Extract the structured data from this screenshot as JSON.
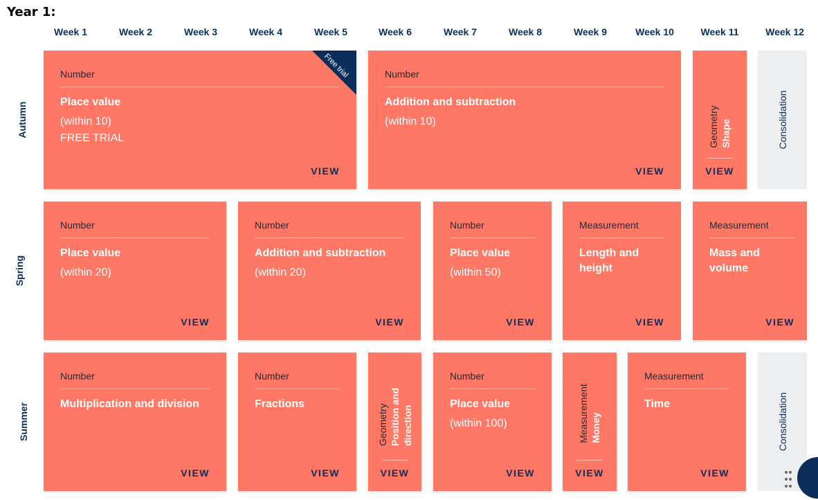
{
  "page": {
    "title": "Year 1:"
  },
  "weeks": [
    "Week 1",
    "Week 2",
    "Week 3",
    "Week 4",
    "Week 5",
    "Week 6",
    "Week 7",
    "Week 8",
    "Week 9",
    "Week 10",
    "Week 11",
    "Week 12"
  ],
  "terms": [
    "Autumn",
    "Spring",
    "Summer"
  ],
  "view_label": "VIEW",
  "ribbon": {
    "label": "Free trial"
  },
  "cards": {
    "autumn_place_value": {
      "category": "Number",
      "title": "Place value",
      "subtitle": "(within 10)",
      "note": "FREE TRIAL"
    },
    "autumn_add_sub": {
      "category": "Number",
      "title": "Addition and subtraction",
      "subtitle": "(within 10)"
    },
    "autumn_shape": {
      "category": "Geometry",
      "title": "Shape"
    },
    "autumn_consolidation": {
      "label": "Consolidation"
    },
    "spring_place_value": {
      "category": "Number",
      "title": "Place value",
      "subtitle": "(within 20)"
    },
    "spring_add_sub": {
      "category": "Number",
      "title": "Addition and subtraction",
      "subtitle": "(within 20)"
    },
    "spring_place_value_50": {
      "category": "Number",
      "title": "Place value",
      "subtitle": "(within 50)"
    },
    "spring_length": {
      "category": "Measurement",
      "title": "Length and height"
    },
    "spring_mass": {
      "category": "Measurement",
      "title": "Mass and volume"
    },
    "summer_mult_div": {
      "category": "Number",
      "title": "Multiplication and division"
    },
    "summer_fractions": {
      "category": "Number",
      "title": "Fractions"
    },
    "summer_position": {
      "category": "Geometry",
      "title": "Position and direction"
    },
    "summer_place_value_100": {
      "category": "Number",
      "title": "Place value",
      "subtitle": "(within 100)"
    },
    "summer_money": {
      "category": "Measurement",
      "title": "Money"
    },
    "summer_time": {
      "category": "Measurement",
      "title": "Time"
    },
    "summer_consolidation": {
      "label": "Consolidation"
    }
  },
  "colors": {
    "card": "#ff7866",
    "navy": "#0b2e5a",
    "consolidation": "#eceef0"
  }
}
